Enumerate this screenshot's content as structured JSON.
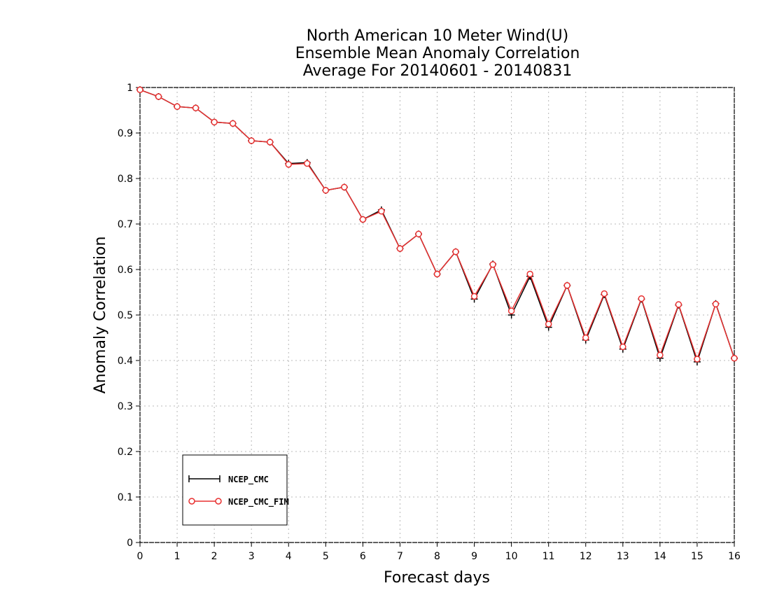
{
  "chart_data": {
    "type": "line",
    "title": [
      "North American 10 Meter Wind(U)",
      "Ensemble Mean Anomaly Correlation",
      "Average For 20140601 - 20140831"
    ],
    "xlabel": "Forecast days",
    "ylabel": "Anomaly Correlation",
    "xlim": [
      0,
      16
    ],
    "ylim": [
      0,
      1
    ],
    "x_ticks": [
      "0",
      "1",
      "2",
      "3",
      "4",
      "5",
      "6",
      "7",
      "8",
      "9",
      "10",
      "11",
      "12",
      "13",
      "14",
      "15",
      "16"
    ],
    "y_ticks": [
      "0",
      "0.1",
      "0.2",
      "0.3",
      "0.4",
      "0.5",
      "0.6",
      "0.7",
      "0.8",
      "0.9",
      "1"
    ],
    "grid": true,
    "legend_position": "bottom-left",
    "x": [
      0,
      0.5,
      1,
      1.5,
      2,
      2.5,
      3,
      3.5,
      4,
      4.5,
      5,
      5.5,
      6,
      6.5,
      7,
      7.5,
      8,
      8.5,
      9,
      9.5,
      10,
      10.5,
      11,
      11.5,
      12,
      12.5,
      13,
      13.5,
      14,
      14.5,
      15,
      15.5,
      16
    ],
    "series": [
      {
        "name": "NCEP_CMC",
        "color": "#000000",
        "marker": "plus",
        "values": [
          0.995,
          0.98,
          0.958,
          0.955,
          0.924,
          0.921,
          0.883,
          0.88,
          0.833,
          0.835,
          0.774,
          0.781,
          0.71,
          0.731,
          0.646,
          0.678,
          0.59,
          0.639,
          0.535,
          0.612,
          0.5,
          0.585,
          0.473,
          0.565,
          0.445,
          0.545,
          0.425,
          0.535,
          0.405,
          0.522,
          0.397,
          0.525,
          0.405
        ]
      },
      {
        "name": "NCEP_CMC_FIM",
        "color": "#e83030",
        "marker": "circle",
        "values": [
          0.995,
          0.98,
          0.958,
          0.955,
          0.924,
          0.921,
          0.883,
          0.88,
          0.831,
          0.833,
          0.774,
          0.781,
          0.71,
          0.728,
          0.646,
          0.678,
          0.59,
          0.639,
          0.541,
          0.611,
          0.509,
          0.59,
          0.48,
          0.565,
          0.45,
          0.547,
          0.43,
          0.536,
          0.412,
          0.523,
          0.403,
          0.524,
          0.405
        ]
      }
    ]
  }
}
